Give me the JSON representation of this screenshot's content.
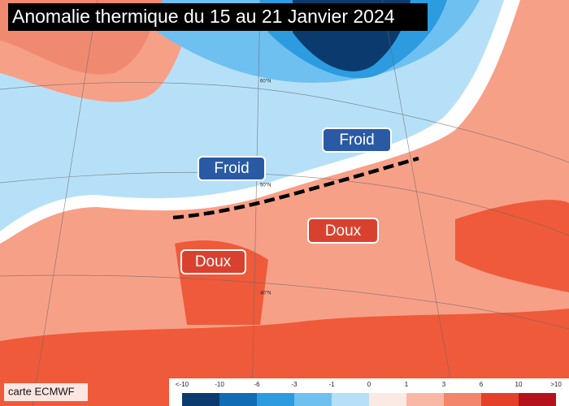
{
  "title": "Anomalie thermique du 15 au 21 Janvier 2024",
  "labels": {
    "cold": [
      "Froid",
      "Froid"
    ],
    "warm": [
      "Doux",
      "Doux"
    ]
  },
  "latitudes": [
    "60°N",
    "50°N",
    "40°N"
  ],
  "credit": "carte ECMWF",
  "legend": {
    "labels": [
      "<-10",
      "-10",
      "-6",
      "-3",
      "-1",
      "0",
      "1",
      "3",
      "6",
      "10",
      ">10"
    ],
    "colors": [
      "#0b3b6e",
      "#0f6cb5",
      "#2c9be0",
      "#6ec0f0",
      "#b6e0f8",
      "#fbeae4",
      "#f9b8a5",
      "#f3866a",
      "#e5412a",
      "#b5131c"
    ]
  }
}
